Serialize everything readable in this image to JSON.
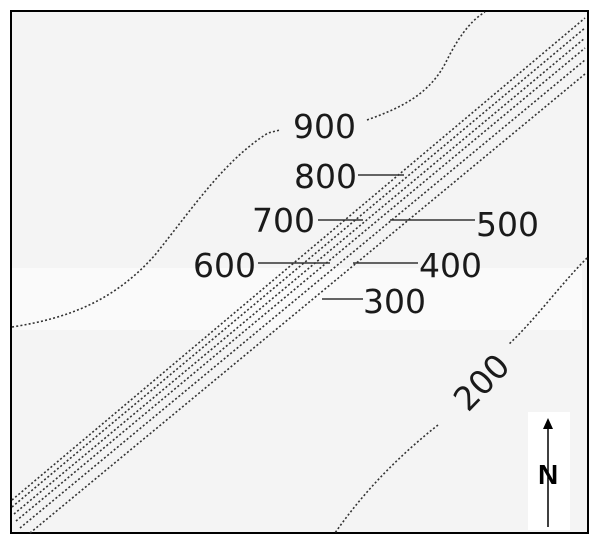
{
  "map": {
    "contour_labels": {
      "c900": "900",
      "c800": "800",
      "c700": "700",
      "c600": "600",
      "c500": "500",
      "c400": "400",
      "c300": "300",
      "c200": "200"
    },
    "north_label": "N"
  },
  "colors": {
    "background": "#f4f4f4",
    "contour": "#333333",
    "border": "#000000"
  }
}
